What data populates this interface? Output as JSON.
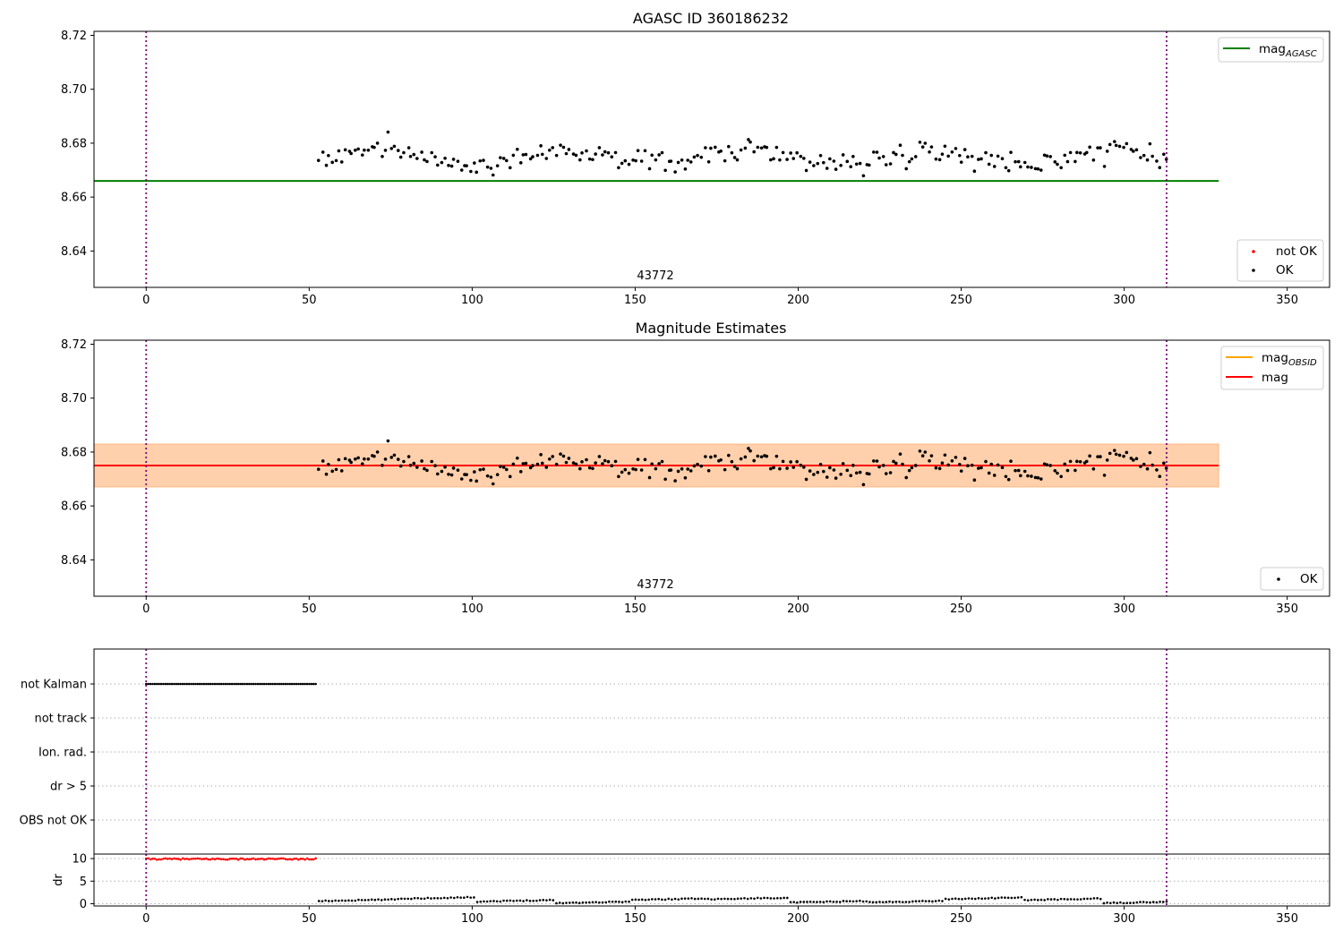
{
  "chart_data": [
    {
      "type": "scatter",
      "title": "AGASC ID 360186232",
      "xlim": [
        -16,
        363
      ],
      "ylim": [
        8.6265,
        8.7215
      ],
      "xticks": [
        0,
        50,
        100,
        150,
        200,
        250,
        300,
        350
      ],
      "yticks": [
        8.64,
        8.66,
        8.68,
        8.7,
        8.72
      ],
      "ytick_labels": [
        "8.64",
        "8.66",
        "8.68",
        "8.70",
        "8.72"
      ],
      "hlines": [
        {
          "name": "magAGASC",
          "label_main": "mag",
          "label_sub": "AGASC",
          "y": 8.666,
          "x_range": [
            -16,
            329
          ],
          "color": "#008000"
        }
      ],
      "vlines": [
        0,
        313
      ],
      "obsid_label": {
        "text": "43772",
        "x": 156
      },
      "legend_lines": [
        {
          "label_main": "mag",
          "label_sub": "AGASC",
          "color": "#008000"
        }
      ],
      "legend_markers": [
        {
          "label": "not OK",
          "color": "#ff0000"
        },
        {
          "label": "OK",
          "color": "#000000"
        }
      ],
      "series": [
        {
          "name": "OK",
          "color": "#000000",
          "x_range": [
            53,
            313
          ],
          "n": 258,
          "y_mean": 8.675,
          "y_noise": 0.0085
        }
      ]
    },
    {
      "type": "scatter",
      "title": "Magnitude Estimates",
      "xlim": [
        -16,
        363
      ],
      "ylim": [
        8.6265,
        8.7215
      ],
      "xticks": [
        0,
        50,
        100,
        150,
        200,
        250,
        300,
        350
      ],
      "yticks": [
        8.64,
        8.66,
        8.68,
        8.7,
        8.72
      ],
      "ytick_labels": [
        "8.64",
        "8.66",
        "8.68",
        "8.70",
        "8.72"
      ],
      "hlines": [
        {
          "name": "mag",
          "y": 8.675,
          "x_range": [
            -16,
            329
          ],
          "color": "#ff0000"
        }
      ],
      "bands": [
        {
          "name": "magOBSID band",
          "y_range": [
            8.667,
            8.683
          ],
          "x_range": [
            -16,
            329
          ],
          "color": "#ffa500",
          "opacity": 0.25
        },
        {
          "name": "mag band",
          "y_range": [
            8.667,
            8.683
          ],
          "x_range": [
            -16,
            329
          ],
          "color": "#ff0000",
          "opacity": 0.1
        }
      ],
      "vlines": [
        0,
        313
      ],
      "obsid_label": {
        "text": "43772",
        "x": 156
      },
      "legend_lines": [
        {
          "label_main": "mag",
          "label_sub": "OBSID",
          "color": "#ffa500"
        },
        {
          "label_main": "mag",
          "label_sub": "",
          "color": "#ff0000"
        }
      ],
      "legend_markers": [
        {
          "label": "OK",
          "color": "#000000"
        }
      ],
      "series": [
        {
          "name": "OK",
          "color": "#000000",
          "x_range": [
            53,
            313
          ],
          "n": 258,
          "y_mean": 8.675,
          "y_noise": 0.0085
        }
      ]
    },
    {
      "type": "scatter",
      "title": "",
      "xlim": [
        -16,
        363
      ],
      "categories": [
        "not Kalman",
        "not track",
        "Ion. rad.",
        "dr > 5",
        "OBS not OK"
      ],
      "flag_series": [
        {
          "name": "not Kalman",
          "x_range": [
            0,
            52
          ],
          "n": 80,
          "color": "#000000"
        }
      ],
      "vlines": [
        0,
        313
      ]
    },
    {
      "type": "scatter",
      "title": "",
      "ylabel": "dr",
      "xlim": [
        -16,
        363
      ],
      "ylim": [
        -0.5,
        11
      ],
      "xticks": [
        0,
        50,
        100,
        150,
        200,
        250,
        300,
        350
      ],
      "yticks": [
        0,
        5,
        10
      ],
      "ytick_labels": [
        "0",
        "5",
        "10"
      ],
      "vlines": [
        0,
        313
      ],
      "series": [
        {
          "name": "dr high",
          "color": "#ff0000",
          "x_range": [
            0,
            52
          ],
          "n": 80,
          "y_mean": 9.9
        },
        {
          "name": "dr",
          "color": "#000000",
          "x_range": [
            53,
            313
          ],
          "n": 258,
          "y_mean": 0.8
        }
      ]
    }
  ]
}
